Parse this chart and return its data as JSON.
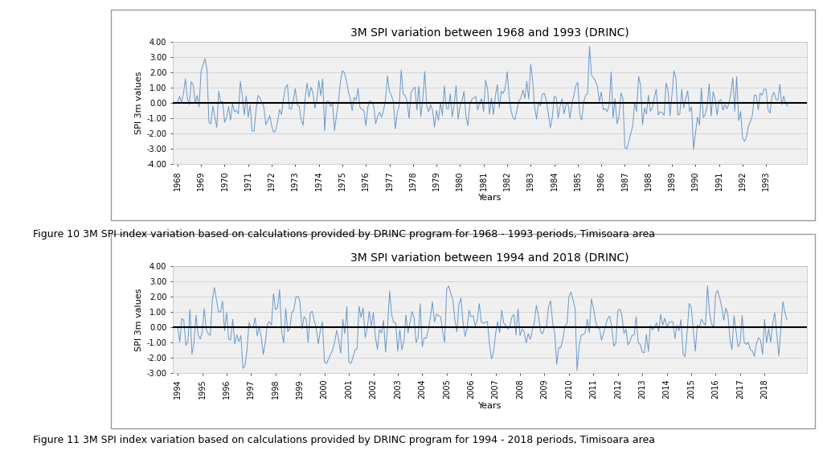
{
  "title1": "3M SPI variation between 1968 and 1993 (DRINC)",
  "title2": "3M SPI variation between 1994 and 2018 (DRINC)",
  "ylabel": "SPI 3m values",
  "xlabel": "Years",
  "caption1": "Figure 10 3M SPI index variation based on calculations provided by DRINC program for 1968 - 1993 periods, Timisoara area",
  "caption2": "Figure 11 3M SPI index variation based on calculations provided by DRINC program for 1994 - 2018 periods, Timisoara area",
  "years1": [
    1968,
    1969,
    1970,
    1971,
    1972,
    1973,
    1974,
    1975,
    1976,
    1977,
    1978,
    1979,
    1980,
    1981,
    1982,
    1983,
    1984,
    1985,
    1986,
    1987,
    1988,
    1989,
    1990,
    1991,
    1992,
    1993
  ],
  "years2": [
    1994,
    1995,
    1996,
    1997,
    1998,
    1999,
    2000,
    2001,
    2002,
    2003,
    2004,
    2005,
    2006,
    2007,
    2008,
    2009,
    2010,
    2011,
    2012,
    2013,
    2014,
    2015,
    2016,
    2017,
    2018
  ],
  "ylim1": [
    -4.0,
    4.0
  ],
  "ylim2": [
    -3.0,
    4.0
  ],
  "yticks1": [
    -4.0,
    -3.0,
    -2.0,
    -1.0,
    0.0,
    1.0,
    2.0,
    3.0,
    4.0
  ],
  "yticks2": [
    -3.0,
    -2.0,
    -1.0,
    0.0,
    1.0,
    2.0,
    3.0,
    4.0
  ],
  "line_color": "#6699CC",
  "zero_line_color": "#000000",
  "bg_color": "#ffffff",
  "plot_bg_color": "#f0f0f0",
  "grid_color": "#cccccc",
  "title_fontsize": 10,
  "tick_fontsize": 7,
  "label_fontsize": 8,
  "caption_fontsize": 9,
  "box_color": "#888888"
}
